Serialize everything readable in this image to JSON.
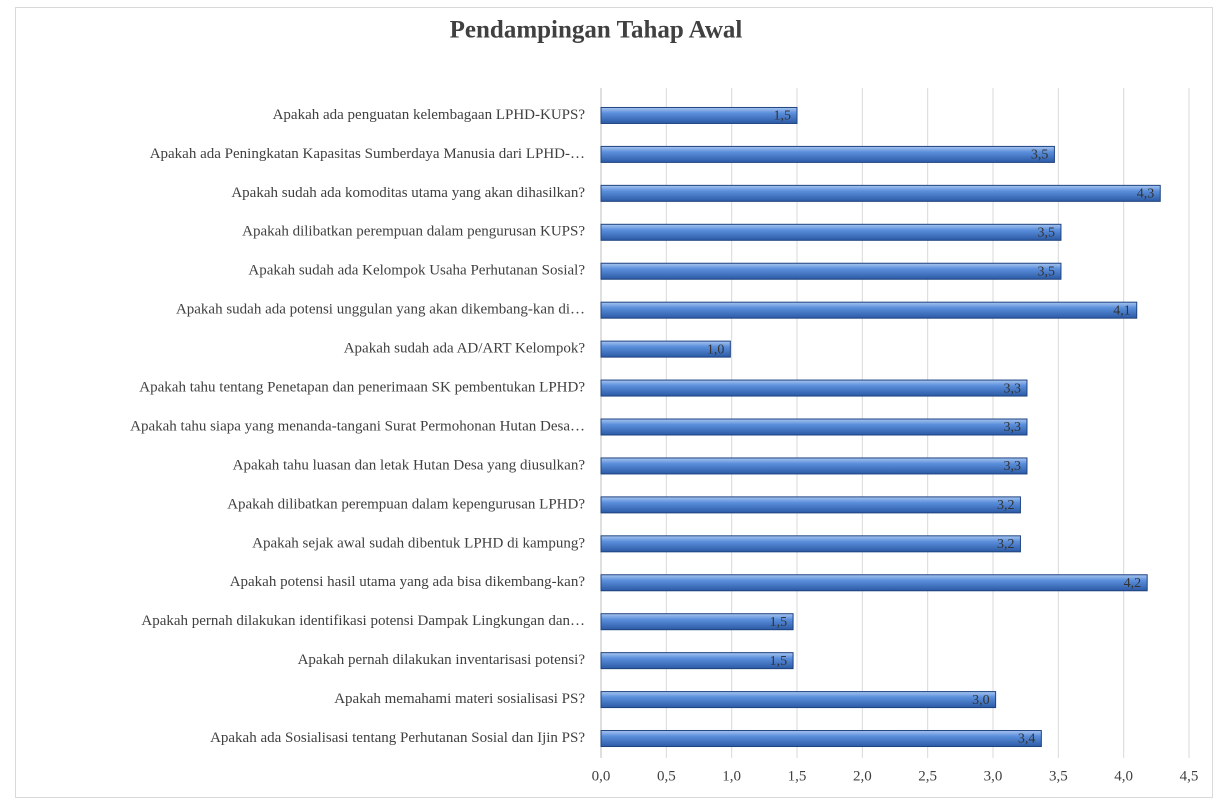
{
  "chart_data": {
    "type": "bar",
    "orientation": "horizontal",
    "title": "Pendampingan Tahap Awal",
    "categories": [
      "Apakah ada penguatan kelembagaan LPHD-KUPS?",
      "Apakah ada Peningkatan Kapasitas Sumberdaya Manusia dari LPHD-…",
      "Apakah sudah ada komoditas utama yang akan dihasilkan?",
      "Apakah dilibatkan perempuan dalam pengurusan KUPS?",
      "Apakah sudah ada Kelompok Usaha Perhutanan Sosial?",
      "Apakah sudah ada potensi unggulan yang akan dikembang-kan di…",
      "Apakah sudah ada AD/ART Kelompok?",
      "Apakah tahu tentang Penetapan dan penerimaan SK pembentukan LPHD?",
      "Apakah tahu siapa yang menanda-tangani Surat Permohonan Hutan Desa…",
      "Apakah tahu luasan dan letak Hutan Desa yang diusulkan?",
      "Apakah dilibatkan perempuan dalam kepengurusan LPHD?",
      "Apakah sejak awal sudah dibentuk LPHD di kampung?",
      "Apakah potensi hasil utama yang ada bisa dikembang-kan?",
      "Apakah pernah dilakukan identifikasi potensi Dampak Lingkungan dan…",
      "Apakah pernah dilakukan inventarisasi potensi?",
      "Apakah memahami materi sosialisasi PS?",
      "Apakah ada Sosialisasi tentang Perhutanan Sosial dan Ijin PS?"
    ],
    "values": [
      1.5,
      3.47,
      4.28,
      3.52,
      3.52,
      4.1,
      0.99,
      3.26,
      3.26,
      3.26,
      3.21,
      3.21,
      4.18,
      1.47,
      1.47,
      3.02,
      3.37
    ],
    "value_labels": [
      "1,5",
      "3,5",
      "4,3",
      "3,5",
      "3,5",
      "4,1",
      "1,0",
      "3,3",
      "3,3",
      "3,3",
      "3,2",
      "3,2",
      "4,2",
      "1,5",
      "1,5",
      "3,0",
      "3,4"
    ],
    "color": "#4a7fd0",
    "xlim": [
      0,
      4.5
    ],
    "xticks": [
      {
        "value": 0,
        "label": "0,0"
      },
      {
        "value": 0.5,
        "label": "0,5"
      },
      {
        "value": 1,
        "label": "1,0"
      },
      {
        "value": 1.5,
        "label": "1,5"
      },
      {
        "value": 2,
        "label": "2,0"
      },
      {
        "value": 2.5,
        "label": "2,5"
      },
      {
        "value": 3,
        "label": "3,0"
      },
      {
        "value": 3.5,
        "label": "3,5"
      },
      {
        "value": 4,
        "label": "4,0"
      },
      {
        "value": 4.5,
        "label": "4,5"
      }
    ],
    "grid": true
  }
}
